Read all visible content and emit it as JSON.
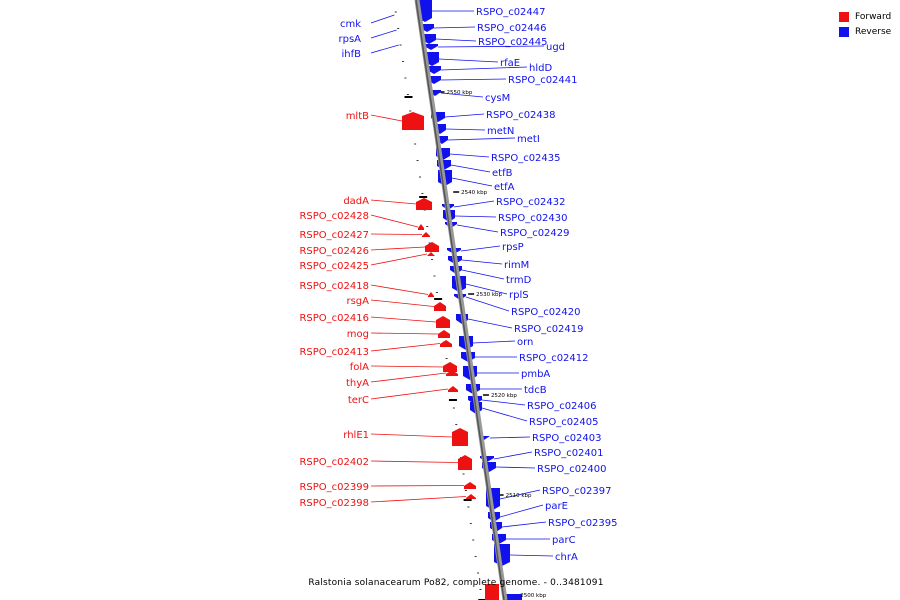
{
  "legend": [
    {
      "label": "Forward",
      "color": "#ee1111"
    },
    {
      "label": "Reverse",
      "color": "#1111ee"
    }
  ],
  "caption": "Ralstonia solanacearum Po82, complete genome. - 0..3481091",
  "ticks": [
    "2550 kbp",
    "2540 kbp",
    "2530 kbp",
    "2520 kbp",
    "2510 kbp",
    "2500 kbp"
  ],
  "genes_left": [
    "cmk",
    "rpsA",
    "ihfB",
    "mltB",
    "dadA",
    "RSPO_c02428",
    "RSPO_c02427",
    "RSPO_c02426",
    "RSPO_c02425",
    "RSPO_c02418",
    "rsgA",
    "RSPO_c02416",
    "mog",
    "RSPO_c02413",
    "folA",
    "thyA",
    "terC",
    "rhlE1",
    "RSPO_c02402",
    "RSPO_c02399",
    "RSPO_c02398"
  ],
  "genes_right": [
    "RSPO_c02447",
    "RSPO_c02446",
    "RSPO_c02445",
    "ugd",
    "rfaE",
    "hldD",
    "RSPO_c02441",
    "cysM",
    "RSPO_c02438",
    "metN",
    "metI",
    "RSPO_c02435",
    "etfB",
    "etfA",
    "RSPO_c02432",
    "RSPO_c02430",
    "RSPO_c02429",
    "rpsP",
    "rimM",
    "trmD",
    "rplS",
    "RSPO_c02420",
    "RSPO_c02419",
    "orn",
    "RSPO_c02412",
    "pmbA",
    "tdcB",
    "RSPO_c02406",
    "RSPO_c02405",
    "RSPO_c02403",
    "RSPO_c02401",
    "RSPO_c02400",
    "RSPO_c02397",
    "parE",
    "RSPO_c02395",
    "parC",
    "chrA"
  ]
}
